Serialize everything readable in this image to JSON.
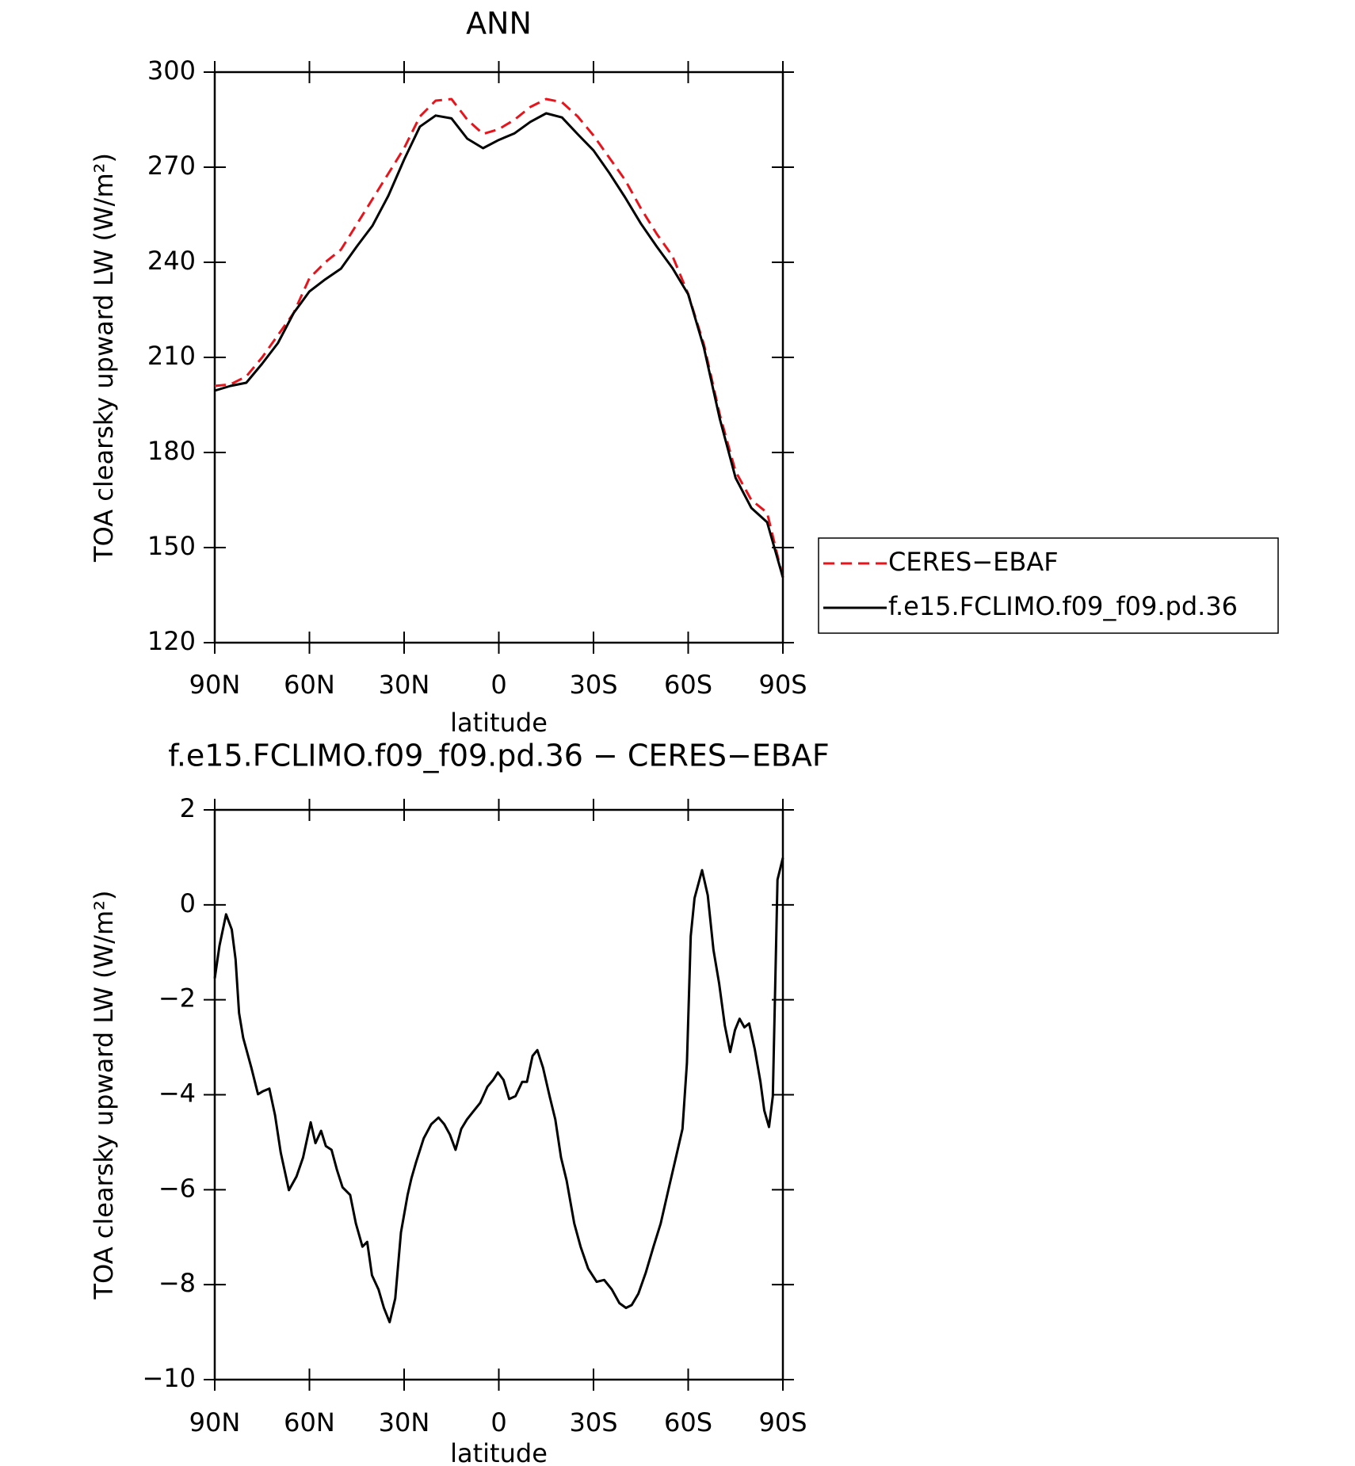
{
  "chart_data": [
    {
      "type": "line",
      "title": "ANN",
      "x_label": "latitude",
      "y_label": "TOA clearsky upward LW (W/m²)",
      "x": [
        90,
        85,
        80,
        75,
        70,
        65,
        60,
        55,
        50,
        45,
        40,
        35,
        30,
        25,
        20,
        15,
        10,
        5,
        0,
        -5,
        -10,
        -15,
        -20,
        -25,
        -30,
        -35,
        -40,
        -45,
        -50,
        -55,
        -60,
        -65,
        -70,
        -75,
        -80,
        -85,
        -90
      ],
      "series": [
        {
          "name": "CERES−EBAF",
          "color": "#e8141c",
          "dash": "dashed",
          "values": [
            201,
            201.5,
            204,
            210,
            217,
            224,
            235,
            240,
            244,
            252,
            260,
            268,
            276,
            286,
            291,
            291.5,
            285,
            280.5,
            282,
            285,
            289,
            291.5,
            290.5,
            286,
            280,
            273,
            266,
            257,
            249,
            242,
            230,
            214,
            192,
            174,
            165,
            161,
            140.5
          ]
        },
        {
          "name": "f.e15.FCLIMO.f09_f09.pd.36",
          "color": "#000000",
          "dash": "solid",
          "values": [
            199.5,
            201,
            202,
            208,
            214.5,
            224,
            230.8,
            234.6,
            238,
            245,
            251.6,
            261,
            272.4,
            282.8,
            286.3,
            285.4,
            279,
            276,
            278.6,
            280.7,
            284.3,
            287,
            285.7,
            280.4,
            275.3,
            268.2,
            260.5,
            252.2,
            245,
            238.2,
            229.9,
            213,
            190.7,
            172,
            162.5,
            158,
            140.6
          ]
        }
      ],
      "xlim": [
        90,
        -90
      ],
      "xticks": [
        {
          "value": 90,
          "label": "90N"
        },
        {
          "value": 60,
          "label": "60N"
        },
        {
          "value": 30,
          "label": "30N"
        },
        0,
        {
          "value": -30,
          "label": "30S"
        },
        {
          "value": -60,
          "label": "60S"
        },
        {
          "value": -90,
          "label": "90S"
        }
      ],
      "ylim": [
        120,
        300
      ],
      "yticks": [
        120,
        150,
        180,
        210,
        240,
        270,
        300
      ],
      "legend": "right"
    },
    {
      "type": "line",
      "title": "f.e15.FCLIMO.f09_f09.pd.36 − CERES−EBAF",
      "x_label": "latitude",
      "y_label": "TOA clearsky upward LW (W/m²)",
      "x": [
        90,
        88.5,
        86.4,
        84.6,
        83.4,
        82.3,
        81,
        78.4,
        76.3,
        74.8,
        72.7,
        70.9,
        69.1,
        66.5,
        64.1,
        62,
        59.6,
        58.1,
        56.3,
        54.8,
        53,
        51.3,
        49.5,
        47.1,
        45.3,
        43.2,
        41.7,
        40.2,
        38.1,
        36.4,
        34.6,
        32.8,
        31,
        28.9,
        27.7,
        26.2,
        23.8,
        21.4,
        19.1,
        17.3,
        15.5,
        13.7,
        11.9,
        10.1,
        8.3,
        5.9,
        3.6,
        1.8,
        0.3,
        -1.5,
        -3.3,
        -5.3,
        -7.4,
        -8.9,
        -10.7,
        -12.2,
        -14,
        -16.1,
        -17.9,
        -19.7,
        -21.5,
        -23.9,
        -25.9,
        -28.3,
        -31,
        -33.4,
        -35.8,
        -38.2,
        -40.3,
        -42.1,
        -44.2,
        -46.6,
        -49,
        -51.3,
        -53.7,
        -56.1,
        -58.2,
        -59.6,
        -60.8,
        -62,
        -64.4,
        -66.2,
        -68,
        -69.8,
        -71.6,
        -73.3,
        -74.8,
        -76.3,
        -77.8,
        -79.3,
        -81.1,
        -82.9,
        -84.1,
        -85.6,
        -86.8,
        -88.3,
        -90
      ],
      "series": [
        {
          "color": "#000000",
          "dash": "solid",
          "values": [
            -1.55,
            -0.86,
            -0.2,
            -0.52,
            -1.15,
            -2.28,
            -2.8,
            -3.43,
            -3.99,
            -3.93,
            -3.87,
            -4.43,
            -5.22,
            -6.01,
            -5.72,
            -5.32,
            -4.58,
            -5.02,
            -4.76,
            -5.08,
            -5.16,
            -5.58,
            -5.95,
            -6.11,
            -6.71,
            -7.2,
            -7.1,
            -7.8,
            -8.1,
            -8.49,
            -8.79,
            -8.29,
            -6.9,
            -6.11,
            -5.76,
            -5.42,
            -4.92,
            -4.62,
            -4.48,
            -4.62,
            -4.84,
            -5.16,
            -4.72,
            -4.52,
            -4.37,
            -4.17,
            -3.83,
            -3.69,
            -3.53,
            -3.69,
            -4.09,
            -4.03,
            -3.73,
            -3.73,
            -3.18,
            -3.06,
            -3.43,
            -4.03,
            -4.52,
            -5.32,
            -5.81,
            -6.71,
            -7.2,
            -7.66,
            -7.94,
            -7.9,
            -8.1,
            -8.39,
            -8.49,
            -8.43,
            -8.19,
            -7.74,
            -7.2,
            -6.71,
            -6.01,
            -5.32,
            -4.72,
            -3.33,
            -0.66,
            0.14,
            0.73,
            0.2,
            -0.95,
            -1.65,
            -2.54,
            -3.1,
            -2.64,
            -2.4,
            -2.58,
            -2.5,
            -3.04,
            -3.73,
            -4.33,
            -4.68,
            -4.03,
            0.53,
            0.99
          ]
        }
      ],
      "xlim": [
        90,
        -90
      ],
      "xticks": [
        {
          "value": 90,
          "label": "90N"
        },
        {
          "value": 60,
          "label": "60N"
        },
        {
          "value": 30,
          "label": "30N"
        },
        0,
        {
          "value": -30,
          "label": "30S"
        },
        {
          "value": -60,
          "label": "60S"
        },
        {
          "value": -90,
          "label": "90S"
        }
      ],
      "ylim": [
        -10,
        2
      ],
      "yticks": [
        {
          "value": -10,
          "label": "−10"
        },
        {
          "value": -8,
          "label": "−8"
        },
        {
          "value": -6,
          "label": "−6"
        },
        {
          "value": -4,
          "label": "−4"
        },
        {
          "value": -2,
          "label": "−2"
        },
        0,
        2
      ]
    }
  ]
}
